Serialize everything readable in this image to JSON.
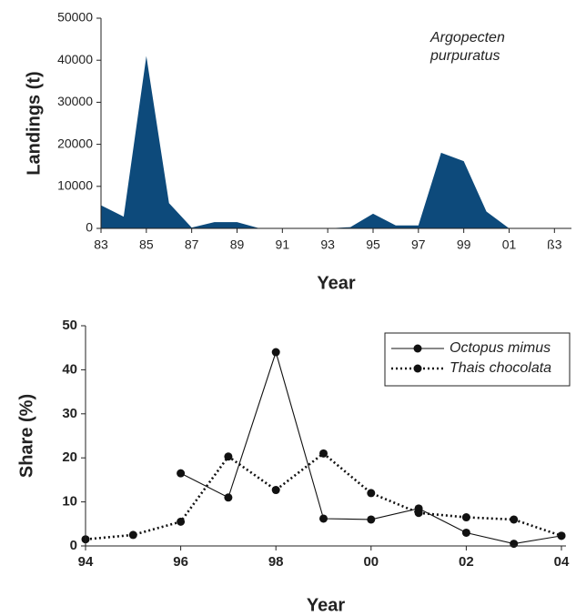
{
  "chart_data": [
    {
      "type": "area",
      "x_label": "Year",
      "y_label": "Landings (t)",
      "annotation": [
        "Argopecten",
        "purpuratus"
      ],
      "color": "#0d4a7b",
      "x": [
        1983,
        1984,
        1985,
        1986,
        1987,
        1988,
        1989,
        1990,
        1991,
        1992,
        1993,
        1994,
        1995,
        1996,
        1997,
        1998,
        1999,
        2000,
        2001,
        2002,
        2003
      ],
      "values": [
        5500,
        2800,
        41000,
        6000,
        200,
        1500,
        1500,
        0,
        0,
        0,
        0,
        300,
        3500,
        700,
        700,
        18000,
        16000,
        4000,
        0,
        0,
        0
      ],
      "xlim": [
        1983,
        2003.75
      ],
      "xticks": [
        {
          "value": 1983,
          "label": "83"
        },
        {
          "value": 1985,
          "label": "85"
        },
        {
          "value": 1987,
          "label": "87"
        },
        {
          "value": 1989,
          "label": "89"
        },
        {
          "value": 1991,
          "label": "91"
        },
        {
          "value": 1993,
          "label": "93"
        },
        {
          "value": 1995,
          "label": "95"
        },
        {
          "value": 1997,
          "label": "97"
        },
        {
          "value": 1999,
          "label": "99"
        },
        {
          "value": 2001,
          "label": "01"
        },
        {
          "value": 2003,
          "label": "ß3"
        }
      ],
      "ylim": [
        0,
        50000
      ],
      "yticks": [
        0,
        10000,
        20000,
        30000,
        40000,
        50000
      ]
    },
    {
      "type": "line",
      "x_label": "Year",
      "y_label": "Share (%)",
      "legend": "upper right",
      "x": [
        1994,
        1995,
        1996,
        1997,
        1998,
        1999,
        2000,
        2001,
        2002,
        2003,
        2004
      ],
      "series": [
        {
          "name": "Octopus mimus",
          "color": "#111111",
          "style": "solid",
          "values": [
            null,
            null,
            16.5,
            11,
            44,
            6.2,
            6,
            8.5,
            3,
            0.5,
            2.3
          ]
        },
        {
          "name": "Thais chocolata",
          "color": "#111111",
          "style": "dotted",
          "values": [
            1.5,
            2.5,
            5.5,
            20.3,
            12.7,
            21,
            12,
            7.5,
            6.5,
            6,
            2.3
          ]
        }
      ],
      "xlim": [
        1994,
        2004
      ],
      "xticks": [
        {
          "value": 1994,
          "label": "94"
        },
        {
          "value": 1996,
          "label": "96"
        },
        {
          "value": 1998,
          "label": "98"
        },
        {
          "value": 2000,
          "label": "00"
        },
        {
          "value": 2002,
          "label": "02"
        },
        {
          "value": 2004,
          "label": "04"
        }
      ],
      "ylim": [
        0,
        50
      ],
      "yticks": [
        0,
        10,
        20,
        30,
        40,
        50
      ]
    }
  ]
}
